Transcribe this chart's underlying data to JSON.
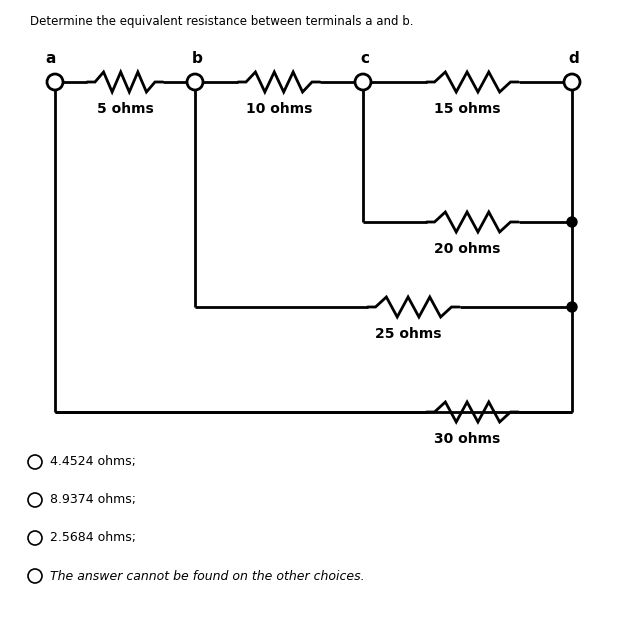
{
  "title": "Determine the equivalent resistance between terminals a and b.",
  "title_fontsize": 8.5,
  "background_color": "#ffffff",
  "line_color": "#000000",
  "line_width": 2.0,
  "choices": [
    "4.4524 ohms;",
    "8.9374 ohms;",
    "2.5684 ohms;",
    "The answer cannot be found on the other choices."
  ],
  "choice_fontsize": 9,
  "node_labels": [
    "a",
    "b",
    "c",
    "d"
  ],
  "resistor_labels": [
    "5 ohms",
    "10 ohms",
    "15 ohms",
    "20 ohms",
    "25 ohms",
    "30 ohms"
  ],
  "label_fontsize": 10
}
